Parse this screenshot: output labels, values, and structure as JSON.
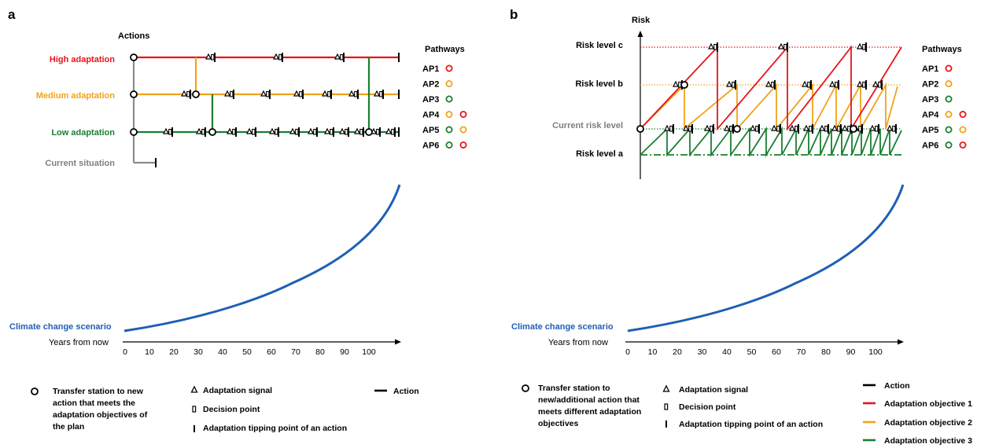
{
  "panel_a": {
    "letter": "a",
    "actions_heading": "Actions",
    "rows": [
      {
        "label": "High adaptation",
        "color": "#e8141a"
      },
      {
        "label": "Medium adaptation",
        "color": "#f0a21a"
      },
      {
        "label": "Low adaptation",
        "color": "#1a7f32"
      },
      {
        "label": "Current situation",
        "color": "#7f7f7f"
      }
    ],
    "pathways_heading": "Pathways",
    "pathways": [
      {
        "label": "AP1",
        "circles": [
          "#e8141a"
        ]
      },
      {
        "label": "AP2",
        "circles": [
          "#f0a21a"
        ]
      },
      {
        "label": "AP3",
        "circles": [
          "#1a7f32"
        ]
      },
      {
        "label": "AP4",
        "circles": [
          "#f0a21a",
          "#e8141a"
        ]
      },
      {
        "label": "AP5",
        "circles": [
          "#1a7f32",
          "#f0a21a"
        ]
      },
      {
        "label": "AP6",
        "circles": [
          "#1a7f32",
          "#e8141a"
        ]
      }
    ],
    "scenario_label": "Climate change scenario",
    "axis_label": "Years from now",
    "ticks": [
      "0",
      "10",
      "20",
      "30",
      "40",
      "50",
      "60",
      "70",
      "80",
      "90",
      "100"
    ],
    "legend": {
      "transfer": [
        "Transfer station to new",
        "action that meets the",
        "adaptation objectives of",
        "the plan"
      ],
      "signal": "Adaptation signal",
      "decision": "Decision point",
      "tipping": "Adaptation tipping point of an action",
      "action": "Action"
    }
  },
  "panel_b": {
    "letter": "b",
    "risk_axis_label": "Risk",
    "levels": [
      "Risk level c",
      "Risk level b",
      "Current risk level",
      "Risk level a"
    ],
    "pathways_heading": "Pathways",
    "pathways": [
      {
        "label": "AP1",
        "circles": [
          "#e8141a"
        ]
      },
      {
        "label": "AP2",
        "circles": [
          "#f0a21a"
        ]
      },
      {
        "label": "AP3",
        "circles": [
          "#1a7f32"
        ]
      },
      {
        "label": "AP4",
        "circles": [
          "#f0a21a",
          "#e8141a"
        ]
      },
      {
        "label": "AP5",
        "circles": [
          "#1a7f32",
          "#f0a21a"
        ]
      },
      {
        "label": "AP6",
        "circles": [
          "#1a7f32",
          "#e8141a"
        ]
      }
    ],
    "scenario_label": "Climate change scenario",
    "axis_label": "Years from now",
    "ticks": [
      "0",
      "10",
      "20",
      "30",
      "40",
      "50",
      "60",
      "70",
      "80",
      "90",
      "100"
    ],
    "legend": {
      "transfer": [
        "Transfer station to",
        "new/additional action that",
        "meets different adaptation",
        "objectives"
      ],
      "signal": "Adaptation signal",
      "decision": "Decision point",
      "tipping": "Adaptation tipping point of an action",
      "action": "Action",
      "objectives": [
        {
          "label": "Adaptation objective 1",
          "color": "#e8141a"
        },
        {
          "label": "Adaptation objective 2",
          "color": "#f0a21a"
        },
        {
          "label": "Adaptation objective 3",
          "color": "#1a7f32"
        }
      ]
    }
  },
  "colors": {
    "red": "#e8141a",
    "orange": "#f0a21a",
    "green": "#1a7f32",
    "grey": "#7f7f7f",
    "blue": "#1f5fb4"
  }
}
